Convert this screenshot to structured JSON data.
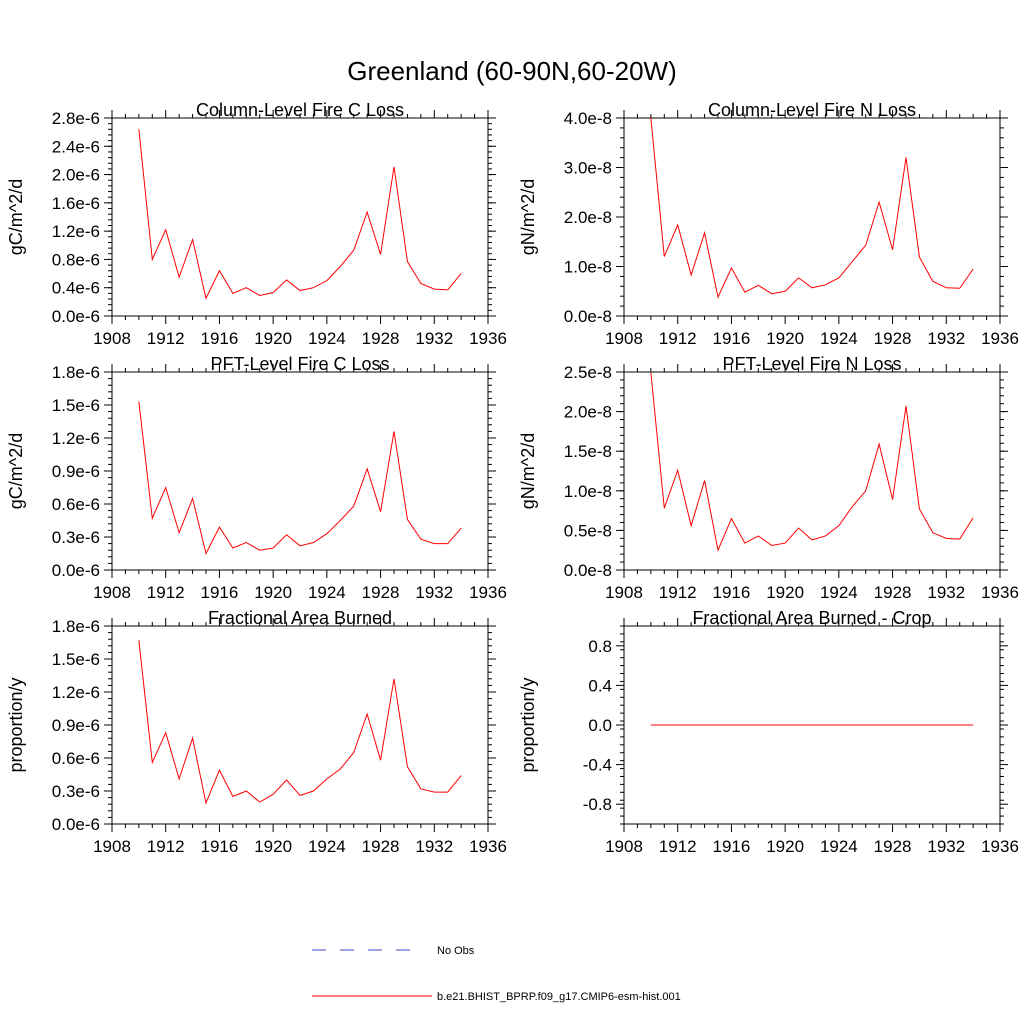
{
  "figure": {
    "title": "Greenland (60-90N,60-20W)"
  },
  "chart_data": [
    {
      "type": "line",
      "title": "Column-Level Fire C Loss",
      "xlabel": "",
      "ylabel": "gC/m^2/d",
      "xlim": [
        1908,
        1936
      ],
      "ylim": [
        0,
        2.8e-06
      ],
      "xticks": [
        1908,
        1912,
        1916,
        1920,
        1924,
        1928,
        1932,
        1936
      ],
      "xtick_labels": [
        "1908",
        "1912",
        "1916",
        "1920",
        "1924",
        "1928",
        "1932",
        "1936"
      ],
      "yticks": [
        0,
        4e-07,
        8e-07,
        1.2e-06,
        1.6e-06,
        2e-06,
        2.4e-06,
        2.8e-06
      ],
      "ytick_labels": [
        "0.0e-6",
        "0.4e-6",
        "0.8e-6",
        "1.2e-6",
        "1.6e-6",
        "2.0e-6",
        "2.4e-6",
        "2.8e-6"
      ],
      "series": [
        {
          "name": "b.e21.BHIST_BPRP.f09_g17.CMIP6-esm-hist.001",
          "color": "#ff0000",
          "x": [
            1910,
            1911,
            1912,
            1913,
            1914,
            1915,
            1916,
            1917,
            1918,
            1919,
            1920,
            1921,
            1922,
            1923,
            1924,
            1925,
            1926,
            1927,
            1928,
            1929,
            1930,
            1931,
            1932,
            1933,
            1934
          ],
          "y": [
            2.64e-06,
            8e-07,
            1.22e-06,
            5.5e-07,
            1.08e-06,
            2.5e-07,
            6.4e-07,
            3.2e-07,
            4e-07,
            2.9e-07,
            3.3e-07,
            5.1e-07,
            3.6e-07,
            4e-07,
            5e-07,
            7e-07,
            9.3e-07,
            1.47e-06,
            8.7e-07,
            2.11e-06,
            7.7e-07,
            4.6e-07,
            3.8e-07,
            3.7e-07,
            6e-07
          ]
        }
      ]
    },
    {
      "type": "line",
      "title": "Column-Level Fire N Loss",
      "xlabel": "",
      "ylabel": "gN/m^2/d",
      "xlim": [
        1908,
        1936
      ],
      "ylim": [
        0,
        4e-08
      ],
      "xticks": [
        1908,
        1912,
        1916,
        1920,
        1924,
        1928,
        1932,
        1936
      ],
      "xtick_labels": [
        "1908",
        "1912",
        "1916",
        "1920",
        "1924",
        "1928",
        "1932",
        "1936"
      ],
      "yticks": [
        0,
        1e-08,
        2e-08,
        3e-08,
        4e-08
      ],
      "ytick_labels": [
        "0.0e-8",
        "1.0e-8",
        "2.0e-8",
        "3.0e-8",
        "4.0e-8"
      ],
      "series": [
        {
          "name": "b.e21.BHIST_BPRP.f09_g17.CMIP6-esm-hist.001",
          "color": "#ff0000",
          "x": [
            1910,
            1911,
            1912,
            1913,
            1914,
            1915,
            1916,
            1917,
            1918,
            1919,
            1920,
            1921,
            1922,
            1923,
            1924,
            1925,
            1926,
            1927,
            1928,
            1929,
            1930,
            1931,
            1932,
            1933,
            1934
          ],
          "y": [
            4e-08,
            1.2e-08,
            1.84e-08,
            8.3e-09,
            1.68e-08,
            3.8e-09,
            9.7e-09,
            4.8e-09,
            6.2e-09,
            4.5e-09,
            5e-09,
            7.7e-09,
            5.7e-09,
            6.3e-09,
            7.7e-09,
            1.1e-08,
            1.43e-08,
            2.3e-08,
            1.34e-08,
            3.2e-08,
            1.19e-08,
            7e-09,
            5.7e-09,
            5.6e-09,
            9.5e-09
          ]
        }
      ]
    },
    {
      "type": "line",
      "title": "PFT-Level Fire C Loss",
      "xlabel": "",
      "ylabel": "gC/m^2/d",
      "xlim": [
        1908,
        1936
      ],
      "ylim": [
        0,
        1.8e-06
      ],
      "xticks": [
        1908,
        1912,
        1916,
        1920,
        1924,
        1928,
        1932,
        1936
      ],
      "xtick_labels": [
        "1908",
        "1912",
        "1916",
        "1920",
        "1924",
        "1928",
        "1932",
        "1936"
      ],
      "yticks": [
        0,
        3e-07,
        6e-07,
        9e-07,
        1.2e-06,
        1.5e-06,
        1.8e-06
      ],
      "ytick_labels": [
        "0.0e-6",
        "0.3e-6",
        "0.6e-6",
        "0.9e-6",
        "1.2e-6",
        "1.5e-6",
        "1.8e-6"
      ],
      "series": [
        {
          "name": "b.e21.BHIST_BPRP.f09_g17.CMIP6-esm-hist.001",
          "color": "#ff0000",
          "x": [
            1910,
            1911,
            1912,
            1913,
            1914,
            1915,
            1916,
            1917,
            1918,
            1919,
            1920,
            1921,
            1922,
            1923,
            1924,
            1925,
            1926,
            1927,
            1928,
            1929,
            1930,
            1931,
            1932,
            1933,
            1934
          ],
          "y": [
            1.53e-06,
            4.7e-07,
            7.5e-07,
            3.4e-07,
            6.5e-07,
            1.5e-07,
            3.9e-07,
            2e-07,
            2.5e-07,
            1.8e-07,
            2e-07,
            3.2e-07,
            2.2e-07,
            2.5e-07,
            3.3e-07,
            4.5e-07,
            5.8e-07,
            9.2e-07,
            5.3e-07,
            1.26e-06,
            4.6e-07,
            2.8e-07,
            2.4e-07,
            2.4e-07,
            3.8e-07
          ]
        }
      ]
    },
    {
      "type": "line",
      "title": "PFT-Level Fire N Loss",
      "xlabel": "",
      "ylabel": "gN/m^2/d",
      "xlim": [
        1908,
        1936
      ],
      "ylim": [
        0,
        2.5e-08
      ],
      "xticks": [
        1908,
        1912,
        1916,
        1920,
        1924,
        1928,
        1932,
        1936
      ],
      "xtick_labels": [
        "1908",
        "1912",
        "1916",
        "1920",
        "1924",
        "1928",
        "1932",
        "1936"
      ],
      "yticks": [
        0,
        5e-09,
        1e-08,
        1.5e-08,
        2e-08,
        2.5e-08
      ],
      "ytick_labels": [
        "0.0e-8",
        "0.5e-8",
        "1.0e-8",
        "1.5e-8",
        "2.0e-8",
        "2.5e-8"
      ],
      "series": [
        {
          "name": "b.e21.BHIST_BPRP.f09_g17.CMIP6-esm-hist.001",
          "color": "#ff0000",
          "x": [
            1910,
            1911,
            1912,
            1913,
            1914,
            1915,
            1916,
            1917,
            1918,
            1919,
            1920,
            1921,
            1922,
            1923,
            1924,
            1925,
            1926,
            1927,
            1928,
            1929,
            1930,
            1931,
            1932,
            1933,
            1934
          ],
          "y": [
            2.49e-08,
            7.8e-09,
            1.26e-08,
            5.6e-09,
            1.13e-08,
            2.5e-09,
            6.5e-09,
            3.4e-09,
            4.3e-09,
            3.1e-09,
            3.4e-09,
            5.3e-09,
            3.8e-09,
            4.3e-09,
            5.6e-09,
            8e-09,
            1e-08,
            1.59e-08,
            8.9e-09,
            2.07e-08,
            7.7e-09,
            4.7e-09,
            4e-09,
            3.9e-09,
            6.6e-09
          ]
        }
      ]
    },
    {
      "type": "line",
      "title": "Fractional Area Burned",
      "xlabel": "",
      "ylabel": "proportion/y",
      "xlim": [
        1908,
        1936
      ],
      "ylim": [
        0,
        1.8e-06
      ],
      "xticks": [
        1908,
        1912,
        1916,
        1920,
        1924,
        1928,
        1932,
        1936
      ],
      "xtick_labels": [
        "1908",
        "1912",
        "1916",
        "1920",
        "1924",
        "1928",
        "1932",
        "1936"
      ],
      "yticks": [
        0,
        3e-07,
        6e-07,
        9e-07,
        1.2e-06,
        1.5e-06,
        1.8e-06
      ],
      "ytick_labels": [
        "0.0e-6",
        "0.3e-6",
        "0.6e-6",
        "0.9e-6",
        "1.2e-6",
        "1.5e-6",
        "1.8e-6"
      ],
      "series": [
        {
          "name": "b.e21.BHIST_BPRP.f09_g17.CMIP6-esm-hist.001",
          "color": "#ff0000",
          "x": [
            1910,
            1911,
            1912,
            1913,
            1914,
            1915,
            1916,
            1917,
            1918,
            1919,
            1920,
            1921,
            1922,
            1923,
            1924,
            1925,
            1926,
            1927,
            1928,
            1929,
            1930,
            1931,
            1932,
            1933,
            1934
          ],
          "y": [
            1.67e-06,
            5.6e-07,
            8.3e-07,
            4.1e-07,
            7.8e-07,
            1.9e-07,
            4.9e-07,
            2.5e-07,
            3e-07,
            2e-07,
            2.7e-07,
            4e-07,
            2.6e-07,
            3e-07,
            4.1e-07,
            5e-07,
            6.5e-07,
            1e-06,
            5.8e-07,
            1.32e-06,
            5.2e-07,
            3.2e-07,
            2.9e-07,
            2.9e-07,
            4.4e-07
          ]
        }
      ]
    },
    {
      "type": "line",
      "title": "Fractional Area Burned - Crop",
      "xlabel": "",
      "ylabel": "proportion/y",
      "xlim": [
        1908,
        1936
      ],
      "ylim": [
        -1.0,
        1.0
      ],
      "xticks": [
        1908,
        1912,
        1916,
        1920,
        1924,
        1928,
        1932,
        1936
      ],
      "xtick_labels": [
        "1908",
        "1912",
        "1916",
        "1920",
        "1924",
        "1928",
        "1932",
        "1936"
      ],
      "yticks": [
        -0.8,
        -0.4,
        0.0,
        0.4,
        0.8
      ],
      "ytick_labels": [
        "-0.8",
        "-0.4",
        "0.0",
        "0.4",
        "0.8"
      ],
      "series": [
        {
          "name": "b.e21.BHIST_BPRP.f09_g17.CMIP6-esm-hist.001",
          "color": "#ff0000",
          "x": [
            1910,
            1911,
            1912,
            1913,
            1914,
            1915,
            1916,
            1917,
            1918,
            1919,
            1920,
            1921,
            1922,
            1923,
            1924,
            1925,
            1926,
            1927,
            1928,
            1929,
            1930,
            1931,
            1932,
            1933,
            1934
          ],
          "y": [
            0,
            0,
            0,
            0,
            0,
            0,
            0,
            0,
            0,
            0,
            0,
            0,
            0,
            0,
            0,
            0,
            0,
            0,
            0,
            0,
            0,
            0,
            0,
            0,
            0
          ]
        }
      ]
    }
  ],
  "legend": {
    "position": "bottom-center",
    "items": [
      {
        "label": "No Obs",
        "color": "#4444cc",
        "style": "dashed"
      },
      {
        "label": "b.e21.BHIST_BPRP.f09_g17.CMIP6-esm-hist.001",
        "color": "#ff0000",
        "style": "solid"
      }
    ]
  }
}
